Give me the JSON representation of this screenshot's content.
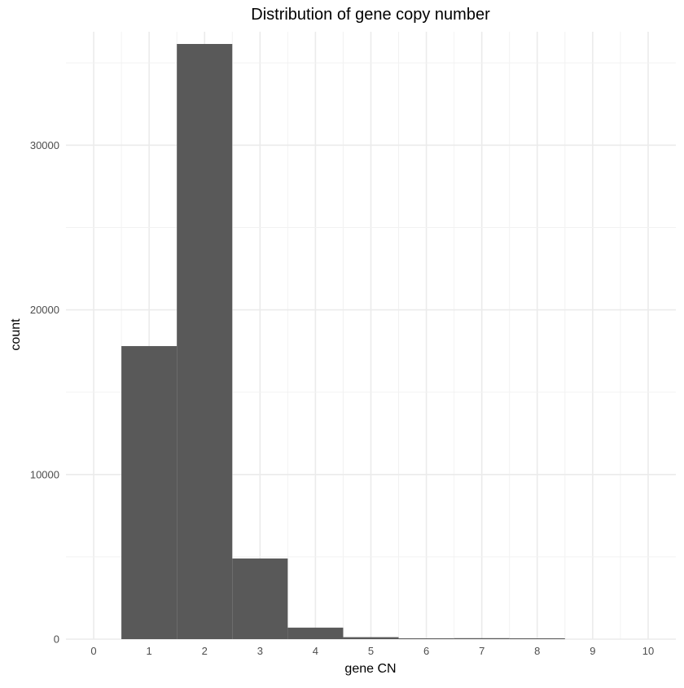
{
  "chart_data": {
    "type": "bar",
    "title": "Distribution of gene copy number",
    "xlabel": "gene CN",
    "ylabel": "count",
    "x_ticks": [
      "0",
      "1",
      "2",
      "3",
      "4",
      "5",
      "6",
      "7",
      "8",
      "9",
      "10"
    ],
    "y_ticks": [
      0,
      10000,
      20000,
      30000
    ],
    "y_tick_labels": [
      "0",
      "10000",
      "20000",
      "30000"
    ],
    "xlim": [
      -0.5,
      10.5
    ],
    "ylim": [
      0,
      36150
    ],
    "grid": true,
    "bar_color": "#595959",
    "bins": [
      {
        "center": 1,
        "width": 1,
        "count": 17800
      },
      {
        "center": 2,
        "width": 1,
        "count": 36150
      },
      {
        "center": 3,
        "width": 1,
        "count": 4900
      },
      {
        "center": 4,
        "width": 1,
        "count": 700
      },
      {
        "center": 5,
        "width": 1,
        "count": 120
      },
      {
        "center": 6,
        "width": 1,
        "count": 30
      },
      {
        "center": 7,
        "width": 1,
        "count": 60
      },
      {
        "center": 8,
        "width": 1,
        "count": 20
      },
      {
        "center": 9,
        "width": 1,
        "count": 0
      },
      {
        "center": 10,
        "width": 1,
        "count": 0
      }
    ]
  }
}
